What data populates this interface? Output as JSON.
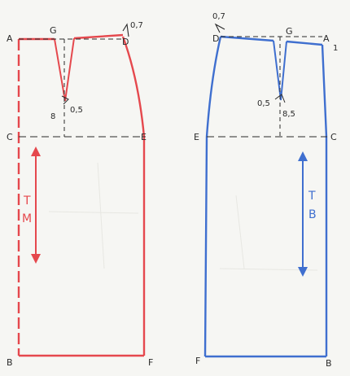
{
  "front": {
    "color": "#e5484d",
    "points": {
      "a": "A",
      "g": "G",
      "d": "D",
      "c": "C",
      "e": "E",
      "b": "B",
      "f": "F"
    },
    "waist_raise": "0,7",
    "dart_depth": "8",
    "dart_half_width": "0,5",
    "length_letters": [
      "T",
      "M"
    ]
  },
  "back": {
    "color": "#3f6fcf",
    "points": {
      "d": "D",
      "g": "G",
      "a": "A",
      "e": "E",
      "c": "C",
      "f": "F",
      "b": "B"
    },
    "waist_raise": "0,7",
    "waist_drop": "1",
    "dart_half_width": "0,5",
    "dart_depth": "8,5",
    "length_letters": [
      "T",
      "B"
    ]
  },
  "ink_color": "#2a2a2a",
  "paper_color": "#f6f6f3"
}
